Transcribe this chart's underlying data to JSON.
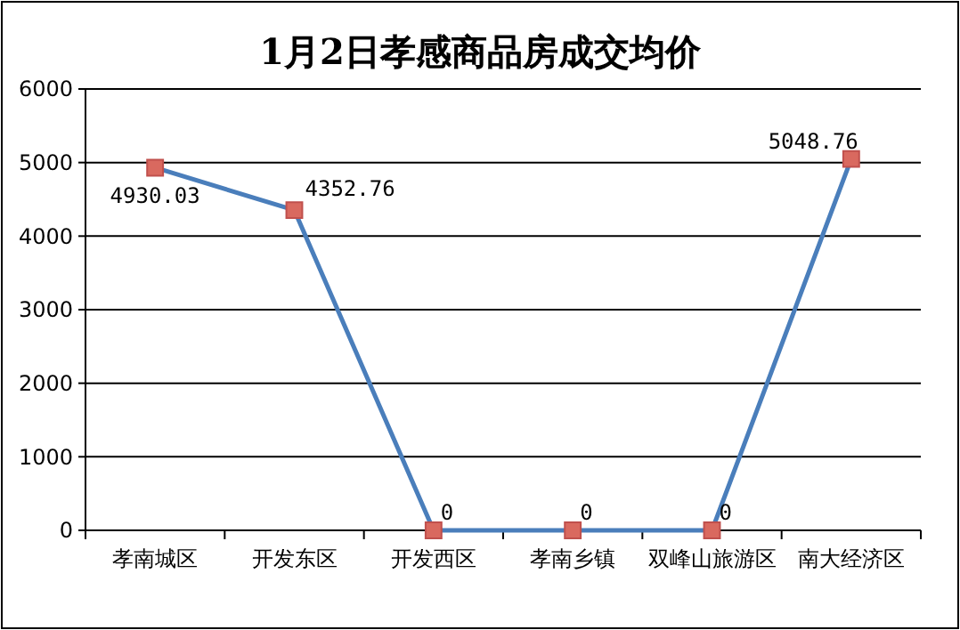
{
  "chart_data": {
    "type": "line",
    "title": "1月2日孝感商品房成交均价",
    "categories": [
      "孝南城区",
      "开发东区",
      "开发西区",
      "孝南乡镇",
      "双峰山旅游区",
      "南大经济区"
    ],
    "series": [
      {
        "color": "#4a7ebb",
        "values": [
          4930.03,
          4352.76,
          0,
          0,
          0,
          5048.76
        ]
      }
    ],
    "ylim": [
      0,
      6000
    ],
    "yticks": [
      0,
      1000,
      2000,
      3000,
      4000,
      5000,
      6000
    ],
    "grid": "y",
    "marker": "square",
    "data_labels": true
  }
}
